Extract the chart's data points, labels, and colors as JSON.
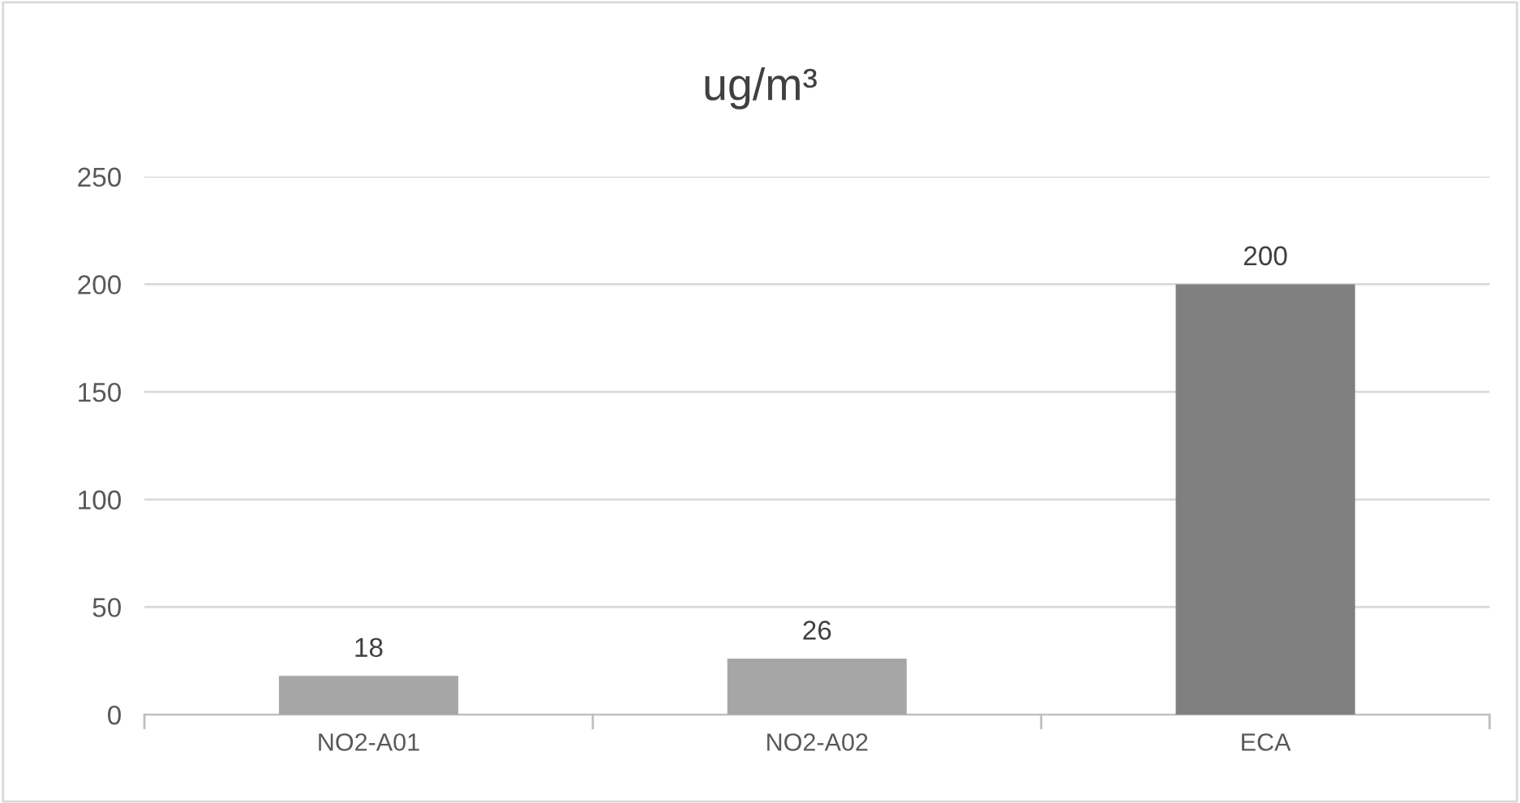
{
  "chart_data": {
    "type": "bar",
    "title": "ug/m³",
    "categories": [
      "NO2-A01",
      "NO2-A02",
      "ECA"
    ],
    "values": [
      18,
      26,
      200
    ],
    "colors": [
      "#a6a6a6",
      "#a6a6a6",
      "#808080"
    ],
    "ylim": [
      0,
      250
    ],
    "yticks": [
      0,
      50,
      100,
      150,
      200,
      250
    ],
    "grid": "y",
    "data_labels": true
  }
}
